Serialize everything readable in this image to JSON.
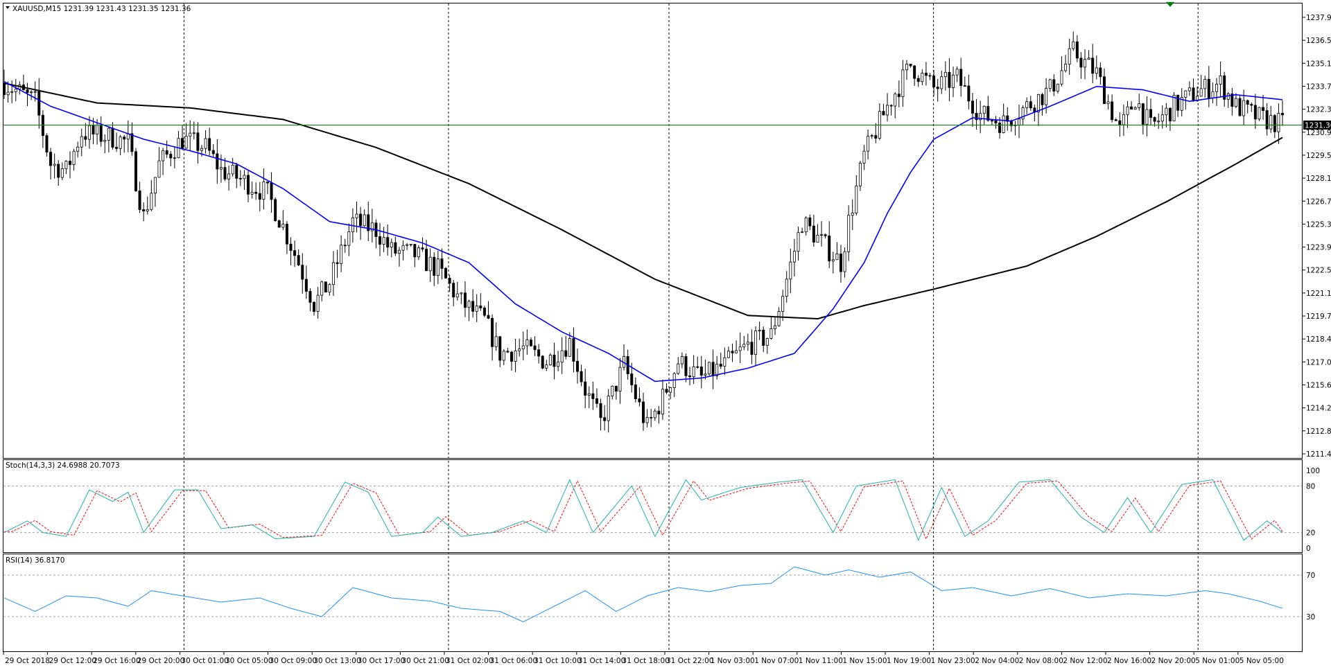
{
  "main": {
    "header": "XAUUSD,M15  1231.39 1231.43 1231.35 1231.36",
    "price_ticks": [
      "1237.90",
      "1236.50",
      "1235.10",
      "1233.70",
      "1232.30",
      "1230.90",
      "1229.50",
      "1228.10",
      "1226.75",
      "1225.35",
      "1223.95",
      "1222.55",
      "1221.15",
      "1219.75",
      "1218.40",
      "1217.00",
      "1215.60",
      "1214.20",
      "1212.80",
      "1211.40"
    ],
    "current_price": "1231.36"
  },
  "stoch": {
    "header": "Stoch(14,3,3) 24.6988 20.7073",
    "ticks": [
      "100",
      "80",
      "20",
      "0"
    ]
  },
  "rsi": {
    "header": "RSI(14) 36.8170",
    "ticks": [
      "70",
      "30"
    ]
  },
  "time_labels": [
    "29 Oct 2018",
    "29 Oct 12:00",
    "29 Oct 16:00",
    "29 Oct 20:00",
    "30 Oct 01:00",
    "30 Oct 05:00",
    "30 Oct 09:00",
    "30 Oct 13:00",
    "30 Oct 17:00",
    "30 Oct 21:00",
    "31 Oct 02:00",
    "31 Oct 06:00",
    "31 Oct 10:00",
    "31 Oct 14:00",
    "31 Oct 18:00",
    "31 Oct 22:00",
    "1 Nov 03:00",
    "1 Nov 07:00",
    "1 Nov 11:00",
    "1 Nov 15:00",
    "1 Nov 19:00",
    "1 Nov 23:00",
    "2 Nov 04:00",
    "2 Nov 08:00",
    "2 Nov 12:00",
    "2 Nov 16:00",
    "2 Nov 20:00",
    "5 Nov 01:00",
    "5 Nov 05:00"
  ],
  "colors": {
    "up": "#000000",
    "down": "#000000",
    "ma_fast": "#0000ff",
    "ma_slow": "#000000",
    "price_line": "#008000",
    "stoch_main": "#20b2aa",
    "stoch_signal": "#ff0000",
    "rsi": "#1e90ff",
    "grid": "#000000"
  },
  "chart_data": {
    "type": "line",
    "symbol": "XAUUSD",
    "timeframe": "M15",
    "ylim": [
      1211.4,
      1237.9
    ],
    "last": {
      "open": 1231.39,
      "high": 1231.43,
      "low": 1231.35,
      "close": 1231.36
    },
    "day_separators": [
      "30 Oct 01:00",
      "31 Oct 02:00",
      "31 Oct 22:00",
      "1 Nov 23:00",
      "5 Nov 01:00"
    ],
    "price_path": [
      [
        0,
        1233.9
      ],
      [
        8,
        1232.8
      ],
      [
        12,
        1229.0
      ],
      [
        16,
        1228.6
      ],
      [
        20,
        1230.9
      ],
      [
        28,
        1230.6
      ],
      [
        32,
        1230.3
      ],
      [
        36,
        1225.8
      ],
      [
        40,
        1229.0
      ],
      [
        46,
        1230.5
      ],
      [
        52,
        1230.0
      ],
      [
        56,
        1228.6
      ],
      [
        60,
        1228.2
      ],
      [
        68,
        1227.2
      ],
      [
        72,
        1225.2
      ],
      [
        76,
        1223.0
      ],
      [
        80,
        1220.5
      ],
      [
        84,
        1221.8
      ],
      [
        90,
        1225.5
      ],
      [
        96,
        1225.0
      ],
      [
        100,
        1223.7
      ],
      [
        106,
        1223.5
      ],
      [
        112,
        1222.6
      ],
      [
        118,
        1220.6
      ],
      [
        124,
        1219.5
      ],
      [
        128,
        1217.5
      ],
      [
        134,
        1217.8
      ],
      [
        140,
        1217.0
      ],
      [
        146,
        1218.2
      ],
      [
        150,
        1215.3
      ],
      [
        154,
        1213.3
      ],
      [
        160,
        1216.8
      ],
      [
        166,
        1213.0
      ],
      [
        170,
        1214.8
      ],
      [
        174,
        1217.0
      ],
      [
        180,
        1216.0
      ],
      [
        186,
        1216.8
      ],
      [
        192,
        1218.0
      ],
      [
        198,
        1218.6
      ],
      [
        202,
        1222.0
      ],
      [
        206,
        1225.5
      ],
      [
        212,
        1224.0
      ],
      [
        216,
        1223.0
      ],
      [
        218,
        1225.5
      ],
      [
        222,
        1229.5
      ],
      [
        228,
        1232.5
      ],
      [
        234,
        1235.0
      ],
      [
        240,
        1233.6
      ],
      [
        246,
        1234.2
      ],
      [
        252,
        1232.0
      ],
      [
        258,
        1231.5
      ],
      [
        264,
        1232.5
      ],
      [
        270,
        1233.5
      ],
      [
        276,
        1235.8
      ],
      [
        282,
        1234.5
      ],
      [
        288,
        1231.0
      ],
      [
        292,
        1233.0
      ],
      [
        296,
        1231.2
      ],
      [
        302,
        1232.5
      ],
      [
        308,
        1233.4
      ],
      [
        314,
        1233.9
      ],
      [
        318,
        1232.5
      ],
      [
        324,
        1231.8
      ],
      [
        330,
        1231.4
      ]
    ],
    "ma_fast_path": [
      [
        0,
        1234.0
      ],
      [
        12,
        1232.5
      ],
      [
        24,
        1231.5
      ],
      [
        36,
        1230.5
      ],
      [
        48,
        1229.8
      ],
      [
        60,
        1229.0
      ],
      [
        72,
        1227.5
      ],
      [
        84,
        1225.5
      ],
      [
        96,
        1225.0
      ],
      [
        108,
        1224.2
      ],
      [
        120,
        1223.0
      ],
      [
        132,
        1220.5
      ],
      [
        144,
        1218.8
      ],
      [
        156,
        1217.5
      ],
      [
        168,
        1215.8
      ],
      [
        180,
        1216.0
      ],
      [
        192,
        1216.6
      ],
      [
        204,
        1217.5
      ],
      [
        214,
        1220.2
      ],
      [
        222,
        1223.0
      ],
      [
        228,
        1226.0
      ],
      [
        234,
        1228.5
      ],
      [
        240,
        1230.5
      ],
      [
        250,
        1231.8
      ],
      [
        260,
        1231.6
      ],
      [
        270,
        1232.5
      ],
      [
        282,
        1233.7
      ],
      [
        294,
        1233.5
      ],
      [
        306,
        1232.8
      ],
      [
        318,
        1233.2
      ],
      [
        330,
        1232.9
      ]
    ],
    "ma_slow_path": [
      [
        0,
        1233.9
      ],
      [
        24,
        1232.7
      ],
      [
        48,
        1232.4
      ],
      [
        72,
        1231.7
      ],
      [
        96,
        1230.0
      ],
      [
        120,
        1227.8
      ],
      [
        144,
        1225.0
      ],
      [
        168,
        1222.0
      ],
      [
        192,
        1219.8
      ],
      [
        210,
        1219.6
      ],
      [
        222,
        1220.4
      ],
      [
        240,
        1221.4
      ],
      [
        264,
        1222.8
      ],
      [
        282,
        1224.6
      ],
      [
        300,
        1226.7
      ],
      [
        318,
        1229.0
      ],
      [
        330,
        1230.6
      ]
    ],
    "stoch_path": [
      [
        0,
        20
      ],
      [
        6,
        35
      ],
      [
        10,
        20
      ],
      [
        16,
        15
      ],
      [
        22,
        75
      ],
      [
        28,
        60
      ],
      [
        32,
        72
      ],
      [
        36,
        20
      ],
      [
        44,
        75
      ],
      [
        50,
        75
      ],
      [
        56,
        25
      ],
      [
        64,
        30
      ],
      [
        70,
        12
      ],
      [
        80,
        15
      ],
      [
        88,
        85
      ],
      [
        94,
        72
      ],
      [
        100,
        15
      ],
      [
        108,
        20
      ],
      [
        112,
        40
      ],
      [
        118,
        15
      ],
      [
        126,
        20
      ],
      [
        134,
        35
      ],
      [
        140,
        20
      ],
      [
        146,
        88
      ],
      [
        152,
        20
      ],
      [
        162,
        80
      ],
      [
        168,
        15
      ],
      [
        176,
        88
      ],
      [
        180,
        62
      ],
      [
        190,
        78
      ],
      [
        200,
        85
      ],
      [
        206,
        88
      ],
      [
        214,
        20
      ],
      [
        220,
        80
      ],
      [
        230,
        88
      ],
      [
        236,
        10
      ],
      [
        242,
        78
      ],
      [
        248,
        15
      ],
      [
        254,
        35
      ],
      [
        262,
        85
      ],
      [
        270,
        88
      ],
      [
        278,
        40
      ],
      [
        284,
        20
      ],
      [
        290,
        65
      ],
      [
        296,
        20
      ],
      [
        304,
        82
      ],
      [
        312,
        88
      ],
      [
        320,
        10
      ],
      [
        326,
        35
      ],
      [
        330,
        20
      ]
    ],
    "rsi_path": [
      [
        0,
        48
      ],
      [
        8,
        35
      ],
      [
        16,
        50
      ],
      [
        24,
        48
      ],
      [
        32,
        40
      ],
      [
        38,
        55
      ],
      [
        46,
        50
      ],
      [
        56,
        44
      ],
      [
        66,
        48
      ],
      [
        74,
        38
      ],
      [
        82,
        30
      ],
      [
        90,
        58
      ],
      [
        100,
        48
      ],
      [
        110,
        45
      ],
      [
        118,
        38
      ],
      [
        128,
        35
      ],
      [
        134,
        25
      ],
      [
        142,
        40
      ],
      [
        150,
        55
      ],
      [
        158,
        35
      ],
      [
        166,
        50
      ],
      [
        174,
        58
      ],
      [
        182,
        54
      ],
      [
        190,
        60
      ],
      [
        198,
        62
      ],
      [
        204,
        78
      ],
      [
        212,
        70
      ],
      [
        218,
        75
      ],
      [
        226,
        68
      ],
      [
        234,
        73
      ],
      [
        242,
        55
      ],
      [
        250,
        58
      ],
      [
        260,
        50
      ],
      [
        270,
        57
      ],
      [
        280,
        48
      ],
      [
        290,
        52
      ],
      [
        300,
        50
      ],
      [
        310,
        55
      ],
      [
        316,
        52
      ],
      [
        324,
        45
      ],
      [
        330,
        38
      ]
    ]
  }
}
